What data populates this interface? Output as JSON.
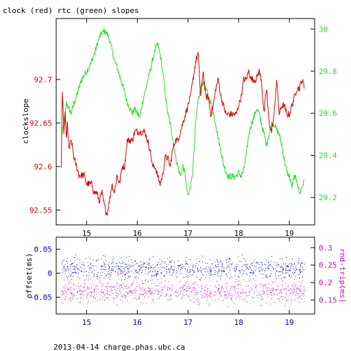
{
  "title": "clock (red) rtc (green) slopes",
  "footer": "2013-04-14 charge.phas.ubc.ca",
  "colors": {
    "red": "#dd0000",
    "green": "#22dd22",
    "blue": "#0000bb",
    "magenta": "#cc00cc",
    "black": "#000000"
  },
  "chart_data": [
    {
      "type": "line",
      "title": "clock (red) rtc (green) slopes",
      "ylabel": "clockslope",
      "xlim": [
        14.4,
        19.5
      ],
      "ylim": [
        92.533,
        92.77
      ],
      "y2lim": [
        29.07,
        30.05
      ],
      "x_ticks": [
        "15",
        "16",
        "17",
        "18",
        "19"
      ],
      "y_ticks": [
        "92.55",
        "92.6",
        "92.65",
        "92.7"
      ],
      "y2_ticks": [
        "29.2",
        "29.4",
        "29.6",
        "29.8",
        "30"
      ],
      "series": [
        {
          "name": "clock",
          "axis": "left",
          "x": [
            14.5,
            14.52,
            14.55,
            14.58,
            14.6,
            14.62,
            14.65,
            14.7,
            14.75,
            14.8,
            14.85,
            14.9,
            14.95,
            15.0,
            15.05,
            15.1,
            15.15,
            15.2,
            15.25,
            15.3,
            15.35,
            15.4,
            15.45,
            15.5,
            15.55,
            15.6,
            15.65,
            15.7,
            15.75,
            15.8,
            15.85,
            15.9,
            15.95,
            16.0,
            16.05,
            16.1,
            16.15,
            16.2,
            16.25,
            16.3,
            16.35,
            16.4,
            16.45,
            16.5,
            16.55,
            16.6,
            16.65,
            16.7,
            16.75,
            16.8,
            16.85,
            16.9,
            16.95,
            17.0,
            17.05,
            17.1,
            17.15,
            17.2,
            17.25,
            17.3,
            17.35,
            17.4,
            17.45,
            17.5,
            17.55,
            17.6,
            17.65,
            17.7,
            17.75,
            17.8,
            17.85,
            17.9,
            17.95,
            18.0,
            18.05,
            18.1,
            18.15,
            18.2,
            18.25,
            18.3,
            18.35,
            18.4,
            18.45,
            18.5,
            18.55,
            18.6,
            18.65,
            18.7,
            18.75,
            18.8,
            18.85,
            18.9,
            18.95,
            19.0,
            19.05,
            19.1,
            19.15,
            19.2,
            19.25,
            19.3
          ],
          "values": [
            92.6,
            92.69,
            92.64,
            92.66,
            92.63,
            92.65,
            92.62,
            92.63,
            92.61,
            92.6,
            92.59,
            92.59,
            92.59,
            92.58,
            92.58,
            92.58,
            92.57,
            92.57,
            92.56,
            92.57,
            92.555,
            92.545,
            92.56,
            92.58,
            92.57,
            92.59,
            92.58,
            92.6,
            92.6,
            92.63,
            92.63,
            92.63,
            92.64,
            92.64,
            92.64,
            92.64,
            92.64,
            92.63,
            92.62,
            92.6,
            92.6,
            92.59,
            92.58,
            92.59,
            92.61,
            92.61,
            92.6,
            92.62,
            92.63,
            92.63,
            92.64,
            92.65,
            92.66,
            92.67,
            92.68,
            92.7,
            92.72,
            92.73,
            92.68,
            92.71,
            92.68,
            92.68,
            92.66,
            92.67,
            92.69,
            92.7,
            92.68,
            92.67,
            92.66,
            92.66,
            92.66,
            92.66,
            92.66,
            92.67,
            92.68,
            92.7,
            92.7,
            92.71,
            92.7,
            92.7,
            92.7,
            92.71,
            92.7,
            92.66,
            92.69,
            92.65,
            92.64,
            92.66,
            92.7,
            92.66,
            92.67,
            92.67,
            92.66,
            92.66,
            92.67,
            92.68,
            92.69,
            92.69,
            92.7,
            92.69
          ]
        },
        {
          "name": "rtc",
          "axis": "right",
          "x": [
            14.5,
            14.55,
            14.6,
            14.65,
            14.7,
            14.75,
            14.8,
            14.85,
            14.9,
            14.95,
            15.0,
            15.05,
            15.1,
            15.15,
            15.2,
            15.25,
            15.3,
            15.35,
            15.4,
            15.45,
            15.5,
            15.55,
            15.6,
            15.65,
            15.7,
            15.75,
            15.8,
            15.85,
            15.9,
            15.95,
            16.0,
            16.05,
            16.1,
            16.15,
            16.2,
            16.25,
            16.3,
            16.35,
            16.4,
            16.45,
            16.5,
            16.55,
            16.6,
            16.65,
            16.7,
            16.75,
            16.8,
            16.85,
            16.9,
            16.95,
            17.0,
            17.05,
            17.1,
            17.15,
            17.2,
            17.25,
            17.3,
            17.35,
            17.4,
            17.45,
            17.5,
            17.55,
            17.6,
            17.65,
            17.7,
            17.75,
            17.8,
            17.85,
            17.9,
            17.95,
            18.0,
            18.05,
            18.1,
            18.15,
            18.2,
            18.25,
            18.3,
            18.35,
            18.4,
            18.45,
            18.5,
            18.55,
            18.6,
            18.65,
            18.7,
            18.75,
            18.8,
            18.85,
            18.9,
            18.95,
            19.0,
            19.05,
            19.1,
            19.15,
            19.2,
            19.25,
            19.3
          ],
          "values": [
            29.48,
            29.55,
            29.65,
            29.62,
            29.6,
            29.65,
            29.68,
            29.72,
            29.76,
            29.78,
            29.8,
            29.82,
            29.85,
            29.88,
            29.92,
            29.96,
            29.98,
            29.99,
            29.98,
            29.95,
            29.9,
            29.85,
            29.82,
            29.78,
            29.74,
            29.7,
            29.65,
            29.63,
            29.6,
            29.62,
            29.6,
            29.58,
            29.65,
            29.7,
            29.75,
            29.8,
            29.85,
            29.9,
            29.93,
            29.88,
            29.8,
            29.7,
            29.6,
            29.55,
            29.48,
            29.4,
            29.35,
            29.3,
            29.35,
            29.3,
            29.2,
            29.25,
            29.35,
            29.55,
            29.65,
            29.72,
            29.75,
            29.72,
            29.68,
            29.65,
            29.6,
            29.55,
            29.48,
            29.42,
            29.36,
            29.32,
            29.3,
            29.3,
            29.3,
            29.3,
            29.32,
            29.3,
            29.33,
            29.4,
            29.5,
            29.55,
            29.58,
            29.62,
            29.6,
            29.55,
            29.5,
            29.45,
            29.5,
            29.55,
            29.55,
            29.52,
            29.5,
            29.45,
            29.38,
            29.32,
            29.3,
            29.25,
            29.3,
            29.28,
            29.22,
            29.25,
            29.28
          ]
        }
      ]
    },
    {
      "type": "scatter",
      "ylabel": "offset(ms)",
      "y2label": "rnd-trip(ms)",
      "xlim": [
        14.4,
        19.5
      ],
      "ylim": [
        -0.085,
        0.075
      ],
      "y2lim": [
        0.11,
        0.33
      ],
      "x_ticks": [
        "15",
        "16",
        "17",
        "18",
        "19"
      ],
      "y_ticks": [
        "-0.05",
        "0",
        "0.05"
      ],
      "y2_ticks": [
        "0.15",
        "0.2",
        "0.25",
        "0.3"
      ],
      "series": [
        {
          "name": "offset",
          "axis": "left",
          "center": 0.01,
          "spread": 0.02,
          "x_range": [
            14.5,
            19.3
          ],
          "count": 900
        },
        {
          "name": "rnd-trip",
          "axis": "right",
          "center": 0.175,
          "spread": 0.03,
          "x_range": [
            14.5,
            19.3
          ],
          "count": 900
        }
      ]
    }
  ]
}
